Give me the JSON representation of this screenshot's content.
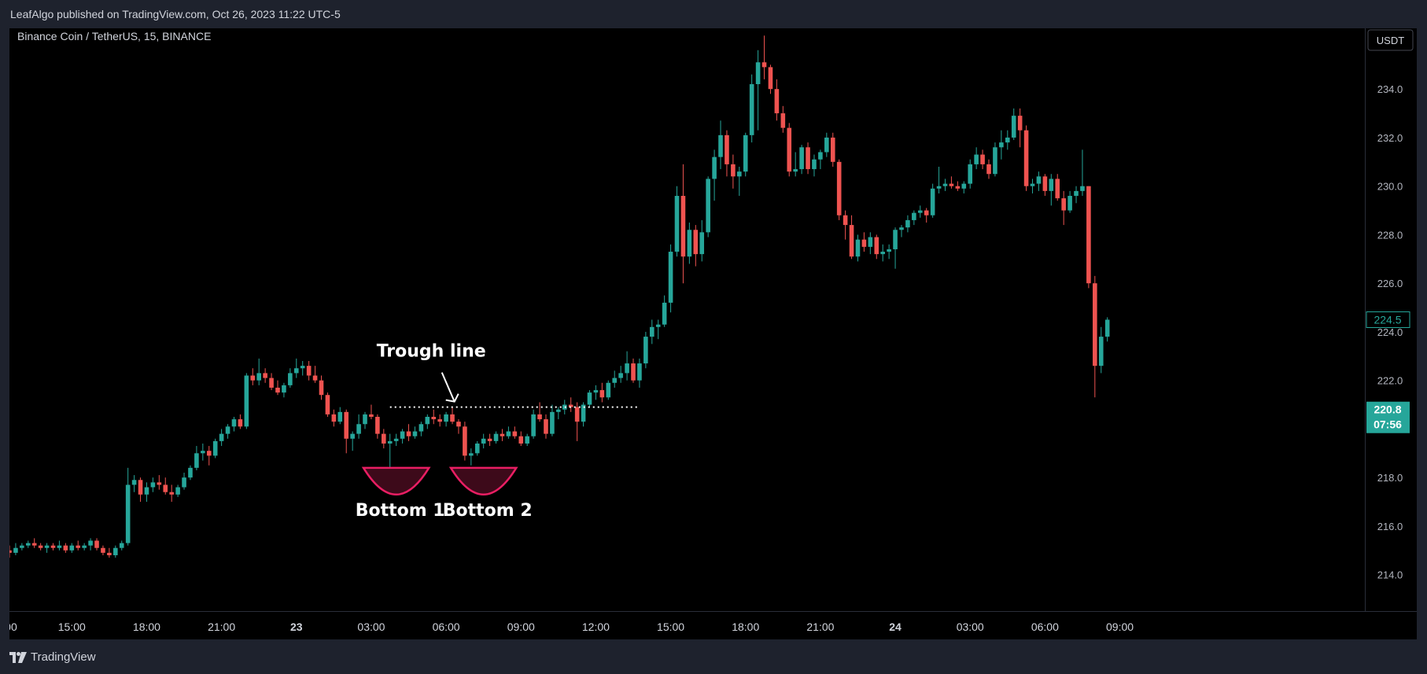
{
  "header": {
    "publisher_line": "LeafAlgo published on TradingView.com, Oct 26, 2023 11:22 UTC-5"
  },
  "footer": {
    "brand": "TradingView",
    "brand_icon": "tradingview-logo-icon"
  },
  "colors": {
    "up": "#26a69a",
    "down": "#ef5350",
    "background": "#000000",
    "frame": "#1e222d",
    "text": "#d1d4dc",
    "annotation": "#ffffff",
    "bottom_marker": "#e91e63"
  },
  "chart_data": {
    "type": "candlestick",
    "symbol_title": "Binance Coin / TetherUS, 15, BINANCE",
    "currency_button": "USDT",
    "ylim": [
      212.5,
      236.5
    ],
    "y_ticks": [
      "214.0",
      "216.0",
      "218.0",
      "220.0",
      "222.0",
      "224.0",
      "226.0",
      "228.0",
      "230.0",
      "232.0",
      "234.0"
    ],
    "x_labels": [
      {
        "label": ":00",
        "bar": 0,
        "bold": false
      },
      {
        "label": "15:00",
        "bar": 10,
        "bold": false
      },
      {
        "label": "18:00",
        "bar": 22,
        "bold": false
      },
      {
        "label": "21:00",
        "bar": 34,
        "bold": false
      },
      {
        "label": "23",
        "bar": 46,
        "bold": true
      },
      {
        "label": "03:00",
        "bar": 58,
        "bold": false
      },
      {
        "label": "06:00",
        "bar": 70,
        "bold": false
      },
      {
        "label": "09:00",
        "bar": 82,
        "bold": false
      },
      {
        "label": "12:00",
        "bar": 94,
        "bold": false
      },
      {
        "label": "15:00",
        "bar": 106,
        "bold": false
      },
      {
        "label": "18:00",
        "bar": 118,
        "bold": false
      },
      {
        "label": "21:00",
        "bar": 130,
        "bold": false
      },
      {
        "label": "24",
        "bar": 142,
        "bold": true
      },
      {
        "label": "03:00",
        "bar": 154,
        "bold": false
      },
      {
        "label": "06:00",
        "bar": 166,
        "bold": false
      },
      {
        "label": "09:00",
        "bar": 178,
        "bold": false
      }
    ],
    "price_labels": [
      {
        "text": "224.5",
        "price": 224.5,
        "style": "outline"
      },
      {
        "text": "220.8",
        "time": "07:56",
        "price": 220.8,
        "style": "filled"
      }
    ],
    "candles": [
      [
        215.0,
        215.2,
        214.7,
        214.9
      ],
      [
        214.9,
        215.3,
        214.8,
        215.1
      ],
      [
        215.1,
        215.3,
        215.0,
        215.2
      ],
      [
        215.2,
        215.4,
        215.1,
        215.3
      ],
      [
        215.3,
        215.5,
        215.1,
        215.2
      ],
      [
        215.2,
        215.3,
        215.0,
        215.1
      ],
      [
        215.1,
        215.3,
        214.9,
        215.2
      ],
      [
        215.2,
        215.3,
        215.0,
        215.1
      ],
      [
        215.1,
        215.4,
        215.0,
        215.2
      ],
      [
        215.2,
        215.3,
        214.9,
        215.0
      ],
      [
        215.0,
        215.3,
        214.9,
        215.2
      ],
      [
        215.2,
        215.4,
        215.0,
        215.1
      ],
      [
        215.1,
        215.3,
        215.0,
        215.2
      ],
      [
        215.2,
        215.5,
        215.0,
        215.4
      ],
      [
        215.4,
        215.5,
        215.0,
        215.1
      ],
      [
        215.1,
        215.2,
        214.8,
        214.9
      ],
      [
        214.9,
        215.1,
        214.7,
        214.8
      ],
      [
        214.8,
        215.2,
        214.7,
        215.1
      ],
      [
        215.1,
        215.4,
        215.0,
        215.3
      ],
      [
        215.3,
        218.4,
        215.2,
        217.7
      ],
      [
        217.7,
        218.1,
        217.4,
        217.9
      ],
      [
        217.9,
        218.0,
        217.0,
        217.3
      ],
      [
        217.3,
        217.8,
        217.0,
        217.6
      ],
      [
        217.6,
        218.0,
        217.4,
        217.8
      ],
      [
        217.8,
        218.1,
        217.5,
        217.7
      ],
      [
        217.7,
        218.0,
        217.3,
        217.4
      ],
      [
        217.4,
        217.7,
        217.0,
        217.3
      ],
      [
        217.3,
        217.7,
        217.2,
        217.6
      ],
      [
        217.6,
        218.2,
        217.5,
        218.0
      ],
      [
        218.0,
        218.5,
        217.9,
        218.4
      ],
      [
        218.4,
        219.3,
        218.3,
        219.0
      ],
      [
        219.0,
        219.4,
        218.7,
        219.1
      ],
      [
        219.1,
        219.3,
        218.5,
        218.9
      ],
      [
        218.9,
        219.6,
        218.8,
        219.5
      ],
      [
        219.5,
        220.0,
        219.3,
        219.8
      ],
      [
        219.8,
        220.2,
        219.6,
        220.1
      ],
      [
        220.1,
        220.5,
        219.9,
        220.4
      ],
      [
        220.4,
        220.6,
        220.0,
        220.1
      ],
      [
        220.1,
        222.3,
        220.0,
        222.2
      ],
      [
        222.2,
        222.5,
        221.8,
        222.0
      ],
      [
        222.0,
        222.9,
        221.8,
        222.3
      ],
      [
        222.3,
        222.5,
        221.9,
        222.1
      ],
      [
        222.1,
        222.3,
        221.6,
        221.7
      ],
      [
        221.7,
        222.0,
        221.4,
        221.5
      ],
      [
        221.5,
        221.9,
        221.3,
        221.8
      ],
      [
        221.8,
        222.5,
        221.7,
        222.3
      ],
      [
        222.3,
        222.9,
        222.1,
        222.5
      ],
      [
        222.5,
        222.8,
        222.2,
        222.6
      ],
      [
        222.6,
        222.8,
        222.0,
        222.2
      ],
      [
        222.2,
        222.6,
        221.9,
        222.0
      ],
      [
        222.0,
        222.2,
        221.2,
        221.4
      ],
      [
        221.4,
        221.5,
        220.5,
        220.6
      ],
      [
        220.6,
        220.8,
        220.1,
        220.3
      ],
      [
        220.3,
        220.9,
        220.2,
        220.7
      ],
      [
        220.7,
        220.8,
        219.0,
        219.6
      ],
      [
        219.6,
        219.9,
        219.1,
        219.8
      ],
      [
        219.8,
        220.6,
        219.6,
        220.2
      ],
      [
        220.2,
        220.7,
        220.0,
        220.6
      ],
      [
        220.6,
        221.0,
        220.4,
        220.5
      ],
      [
        220.5,
        220.6,
        219.6,
        219.8
      ],
      [
        219.8,
        220.0,
        219.2,
        219.4
      ],
      [
        219.4,
        219.8,
        218.3,
        219.5
      ],
      [
        219.5,
        219.8,
        219.3,
        219.6
      ],
      [
        219.6,
        220.0,
        219.4,
        219.9
      ],
      [
        219.9,
        220.2,
        219.5,
        219.7
      ],
      [
        219.7,
        220.1,
        219.6,
        219.9
      ],
      [
        219.9,
        220.3,
        219.7,
        220.2
      ],
      [
        220.2,
        220.6,
        220.0,
        220.5
      ],
      [
        220.5,
        220.8,
        220.2,
        220.4
      ],
      [
        220.4,
        220.6,
        220.1,
        220.3
      ],
      [
        220.3,
        220.7,
        220.1,
        220.6
      ],
      [
        220.6,
        220.9,
        220.2,
        220.3
      ],
      [
        220.3,
        220.4,
        219.8,
        220.1
      ],
      [
        220.1,
        220.3,
        218.7,
        218.9
      ],
      [
        218.9,
        219.2,
        218.5,
        219.0
      ],
      [
        219.0,
        219.5,
        218.9,
        219.4
      ],
      [
        219.4,
        219.8,
        219.2,
        219.6
      ],
      [
        219.6,
        219.8,
        219.3,
        219.5
      ],
      [
        219.5,
        219.9,
        219.4,
        219.8
      ],
      [
        219.8,
        220.0,
        219.5,
        219.7
      ],
      [
        219.7,
        220.1,
        219.6,
        219.9
      ],
      [
        219.9,
        220.1,
        219.6,
        219.7
      ],
      [
        219.7,
        219.9,
        219.3,
        219.4
      ],
      [
        219.4,
        219.8,
        219.3,
        219.7
      ],
      [
        219.7,
        220.8,
        219.6,
        220.6
      ],
      [
        220.6,
        221.1,
        220.3,
        220.4
      ],
      [
        220.4,
        220.6,
        219.6,
        219.8
      ],
      [
        219.8,
        221.0,
        219.7,
        220.7
      ],
      [
        220.7,
        220.9,
        220.4,
        220.8
      ],
      [
        220.8,
        221.2,
        220.6,
        221.0
      ],
      [
        221.0,
        221.3,
        220.7,
        220.9
      ],
      [
        220.9,
        221.1,
        219.5,
        220.3
      ],
      [
        220.3,
        221.1,
        220.1,
        221.0
      ],
      [
        221.0,
        221.6,
        220.9,
        221.5
      ],
      [
        221.5,
        221.8,
        221.2,
        221.6
      ],
      [
        221.6,
        221.9,
        221.1,
        221.3
      ],
      [
        221.3,
        222.0,
        221.2,
        221.9
      ],
      [
        221.9,
        222.4,
        221.7,
        222.1
      ],
      [
        222.1,
        222.6,
        221.9,
        222.3
      ],
      [
        222.3,
        223.2,
        222.0,
        222.7
      ],
      [
        222.7,
        222.9,
        221.9,
        222.0
      ],
      [
        222.0,
        222.9,
        221.7,
        222.7
      ],
      [
        222.7,
        224.0,
        222.5,
        223.8
      ],
      [
        223.8,
        224.5,
        223.5,
        224.2
      ],
      [
        224.2,
        224.5,
        223.7,
        224.3
      ],
      [
        224.3,
        225.5,
        224.2,
        225.2
      ],
      [
        225.2,
        227.6,
        224.8,
        227.3
      ],
      [
        227.3,
        230.0,
        227.1,
        229.6
      ],
      [
        229.6,
        230.9,
        226.0,
        227.1
      ],
      [
        227.1,
        228.5,
        226.8,
        228.2
      ],
      [
        228.2,
        228.4,
        226.7,
        227.2
      ],
      [
        227.2,
        228.6,
        226.9,
        228.1
      ],
      [
        228.1,
        230.4,
        227.9,
        230.3
      ],
      [
        230.3,
        231.5,
        229.4,
        231.2
      ],
      [
        231.2,
        232.7,
        230.7,
        232.1
      ],
      [
        232.1,
        232.3,
        230.4,
        230.9
      ],
      [
        230.9,
        231.3,
        229.9,
        230.4
      ],
      [
        230.4,
        230.8,
        229.6,
        230.6
      ],
      [
        230.6,
        232.2,
        230.4,
        232.1
      ],
      [
        232.1,
        234.6,
        231.8,
        234.2
      ],
      [
        234.2,
        235.6,
        232.3,
        235.1
      ],
      [
        235.1,
        236.2,
        234.4,
        234.9
      ],
      [
        234.9,
        235.0,
        233.8,
        234.0
      ],
      [
        234.0,
        234.4,
        232.7,
        233.0
      ],
      [
        233.0,
        233.3,
        232.2,
        232.4
      ],
      [
        232.4,
        232.6,
        230.4,
        230.6
      ],
      [
        230.6,
        231.4,
        230.4,
        230.7
      ],
      [
        230.7,
        231.7,
        230.5,
        231.6
      ],
      [
        231.6,
        231.8,
        230.5,
        230.7
      ],
      [
        230.7,
        231.3,
        230.4,
        231.1
      ],
      [
        231.1,
        231.5,
        230.7,
        231.4
      ],
      [
        231.4,
        232.2,
        231.2,
        232.0
      ],
      [
        232.0,
        232.2,
        230.8,
        231.0
      ],
      [
        231.0,
        231.1,
        228.6,
        228.8
      ],
      [
        228.8,
        229.0,
        227.8,
        228.4
      ],
      [
        228.4,
        228.8,
        227.0,
        227.1
      ],
      [
        227.1,
        228.0,
        226.9,
        227.8
      ],
      [
        227.8,
        228.1,
        227.3,
        227.5
      ],
      [
        227.5,
        228.1,
        227.2,
        227.9
      ],
      [
        227.9,
        228.0,
        227.0,
        227.2
      ],
      [
        227.2,
        227.6,
        226.9,
        227.3
      ],
      [
        227.3,
        227.6,
        227.0,
        227.4
      ],
      [
        227.4,
        228.3,
        226.6,
        228.2
      ],
      [
        228.2,
        228.4,
        227.9,
        228.3
      ],
      [
        228.3,
        228.8,
        228.1,
        228.6
      ],
      [
        228.6,
        229.0,
        228.4,
        228.9
      ],
      [
        228.9,
        229.2,
        228.7,
        229.0
      ],
      [
        229.0,
        229.1,
        228.5,
        228.8
      ],
      [
        228.8,
        230.1,
        228.7,
        229.9
      ],
      [
        229.9,
        230.8,
        229.7,
        230.0
      ],
      [
        230.0,
        230.3,
        229.8,
        230.1
      ],
      [
        230.1,
        230.4,
        229.9,
        230.0
      ],
      [
        230.0,
        230.2,
        229.8,
        229.9
      ],
      [
        229.9,
        230.2,
        229.7,
        230.1
      ],
      [
        230.1,
        231.1,
        229.9,
        230.9
      ],
      [
        230.9,
        231.6,
        230.7,
        231.3
      ],
      [
        231.3,
        231.5,
        230.7,
        230.9
      ],
      [
        230.9,
        231.1,
        230.3,
        230.5
      ],
      [
        230.5,
        231.8,
        230.4,
        231.6
      ],
      [
        231.6,
        232.3,
        231.1,
        231.8
      ],
      [
        231.8,
        232.3,
        231.5,
        232.0
      ],
      [
        232.0,
        233.2,
        231.9,
        232.9
      ],
      [
        232.9,
        233.2,
        231.6,
        232.3
      ],
      [
        232.3,
        232.5,
        229.8,
        230.0
      ],
      [
        230.0,
        230.3,
        229.7,
        230.1
      ],
      [
        230.1,
        230.6,
        229.8,
        230.4
      ],
      [
        230.4,
        230.5,
        229.6,
        229.8
      ],
      [
        229.8,
        230.5,
        229.2,
        230.3
      ],
      [
        230.3,
        230.5,
        229.4,
        229.5
      ],
      [
        229.5,
        229.8,
        228.4,
        229.0
      ],
      [
        229.0,
        229.8,
        228.9,
        229.6
      ],
      [
        229.6,
        230.0,
        229.3,
        229.8
      ],
      [
        229.8,
        231.5,
        229.6,
        230.0
      ],
      [
        230.0,
        230.0,
        225.8,
        226.0
      ],
      [
        226.0,
        226.3,
        221.3,
        222.6
      ],
      [
        222.6,
        224.2,
        222.3,
        223.8
      ],
      [
        223.8,
        224.6,
        223.6,
        224.5
      ]
    ],
    "annotations": {
      "trough_label": "Trough line",
      "trough_line": {
        "price": 220.9,
        "from_bar": 61,
        "to_bar": 101
      },
      "bottom_labels": [
        "Bottom 1",
        "Bottom 2"
      ],
      "bottoms": [
        {
          "from_bar": 57,
          "to_bar": 67,
          "price_top": 218.4,
          "price_bottom": 217.3
        },
        {
          "from_bar": 71,
          "to_bar": 81,
          "price_top": 218.4,
          "price_bottom": 217.3
        }
      ]
    }
  }
}
